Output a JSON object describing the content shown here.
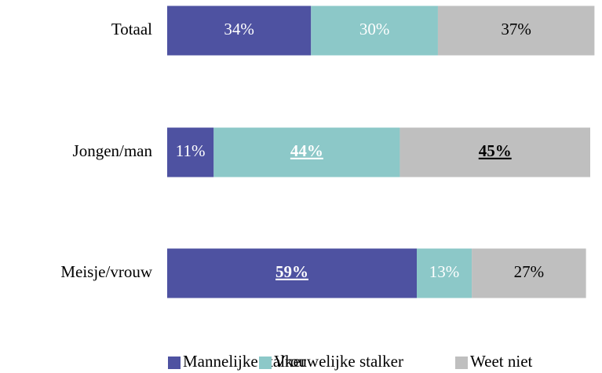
{
  "chart_data": {
    "type": "stacked-barh",
    "categories": [
      "Totaal",
      "Jongen/man",
      "Meisje/vrouw"
    ],
    "series": [
      {
        "name": "Mannelijke stalker",
        "color": "#4e52a1",
        "values": [
          34,
          11,
          59
        ],
        "value_labels": [
          "34%",
          "11%",
          "59%"
        ],
        "label_color": "#ffffff",
        "emphasis": [
          false,
          false,
          true
        ]
      },
      {
        "name": "Vrouwelijke stalker",
        "color": "#8cc8c8",
        "values": [
          30,
          44,
          13
        ],
        "value_labels": [
          "30%",
          "44%",
          "13%"
        ],
        "label_color": "#ffffff",
        "emphasis": [
          false,
          true,
          false
        ]
      },
      {
        "name": "Weet niet",
        "color": "#bfbfbf",
        "values": [
          37,
          45,
          27
        ],
        "value_labels": [
          "37%",
          "45%",
          "27%"
        ],
        "label_color": "#000000",
        "emphasis": [
          false,
          true,
          false
        ]
      }
    ],
    "xlim": [
      0,
      100
    ],
    "legend": "bottom"
  }
}
